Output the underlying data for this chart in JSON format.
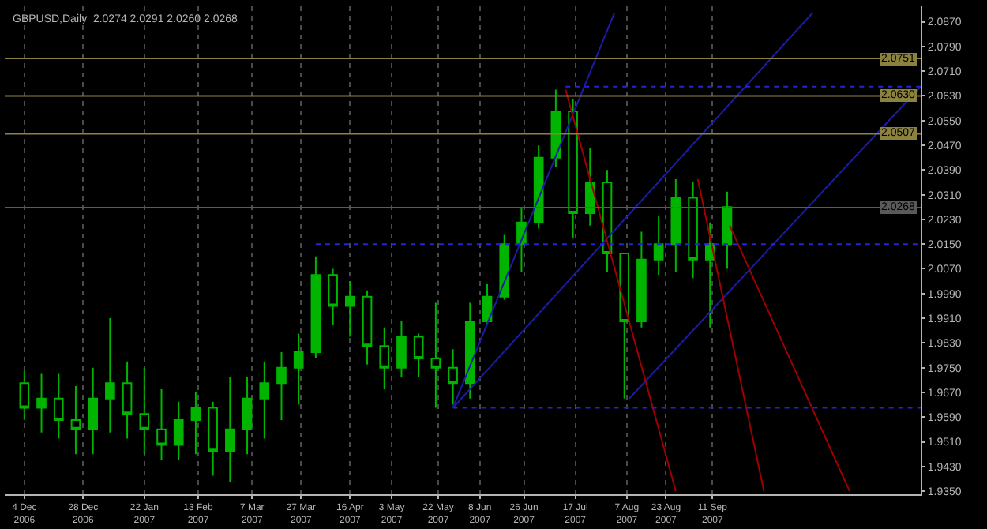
{
  "chart_data": {
    "type": "candlestick",
    "title": "GBPUSD,Daily  2.0274 2.0291 2.0260 2.0268",
    "color": "#00b400",
    "x": [
      "2006-12-04",
      "2006-12-11",
      "2006-12-18",
      "2006-12-25",
      "2007-01-01",
      "2007-01-08",
      "2007-01-15",
      "2007-01-22",
      "2007-01-29",
      "2007-02-05",
      "2007-02-12",
      "2007-02-19",
      "2007-02-26",
      "2007-03-05",
      "2007-03-12",
      "2007-03-19",
      "2007-03-26",
      "2007-04-02",
      "2007-04-09",
      "2007-04-16",
      "2007-04-23",
      "2007-04-30",
      "2007-05-07",
      "2007-05-14",
      "2007-05-21",
      "2007-05-28",
      "2007-06-04",
      "2007-06-11",
      "2007-06-18",
      "2007-06-25",
      "2007-07-02",
      "2007-07-09",
      "2007-07-16",
      "2007-07-23",
      "2007-07-30",
      "2007-08-06",
      "2007-08-13",
      "2007-08-20",
      "2007-08-27",
      "2007-09-03",
      "2007-09-10",
      "2007-09-17"
    ],
    "ohlc": [
      [
        1.97,
        1.974,
        1.958,
        1.962
      ],
      [
        1.962,
        1.973,
        1.954,
        1.965
      ],
      [
        1.965,
        1.973,
        1.952,
        1.958
      ],
      [
        1.958,
        1.969,
        1.947,
        1.955
      ],
      [
        1.955,
        1.975,
        1.947,
        1.965
      ],
      [
        1.965,
        1.991,
        1.954,
        1.97
      ],
      [
        1.97,
        1.977,
        1.952,
        1.96
      ],
      [
        1.96,
        1.975,
        1.947,
        1.955
      ],
      [
        1.955,
        1.968,
        1.945,
        1.95
      ],
      [
        1.95,
        1.964,
        1.945,
        1.958
      ],
      [
        1.958,
        1.967,
        1.947,
        1.962
      ],
      [
        1.962,
        1.964,
        1.94,
        1.948
      ],
      [
        1.948,
        1.972,
        1.938,
        1.955
      ],
      [
        1.955,
        1.972,
        1.947,
        1.965
      ],
      [
        1.965,
        1.977,
        1.952,
        1.97
      ],
      [
        1.97,
        1.98,
        1.958,
        1.975
      ],
      [
        1.975,
        1.986,
        1.963,
        1.98
      ],
      [
        1.98,
        2.011,
        1.978,
        2.005
      ],
      [
        2.005,
        2.007,
        1.989,
        1.995
      ],
      [
        1.995,
        2.003,
        1.985,
        1.998
      ],
      [
        1.998,
        2.0,
        1.976,
        1.982
      ],
      [
        1.982,
        1.988,
        1.968,
        1.975
      ],
      [
        1.975,
        1.99,
        1.972,
        1.985
      ],
      [
        1.985,
        1.986,
        1.972,
        1.978
      ],
      [
        1.978,
        1.996,
        1.962,
        1.975
      ],
      [
        1.975,
        1.981,
        1.963,
        1.97
      ],
      [
        1.97,
        1.996,
        1.965,
        1.99
      ],
      [
        1.99,
        2.002,
        1.989,
        1.998
      ],
      [
        1.998,
        2.018,
        1.997,
        2.015
      ],
      [
        2.015,
        2.027,
        2.006,
        2.022
      ],
      [
        2.022,
        2.047,
        2.02,
        2.043
      ],
      [
        2.043,
        2.065,
        2.04,
        2.058
      ],
      [
        2.058,
        2.062,
        2.017,
        2.025
      ],
      [
        2.025,
        2.046,
        2.021,
        2.035
      ],
      [
        2.035,
        2.039,
        2.006,
        2.012
      ],
      [
        2.012,
        2.012,
        1.965,
        1.99
      ],
      [
        1.99,
        2.019,
        1.988,
        2.01
      ],
      [
        2.01,
        2.024,
        2.005,
        2.015
      ],
      [
        2.015,
        2.036,
        2.006,
        2.03
      ],
      [
        2.03,
        2.035,
        2.004,
        2.01
      ],
      [
        2.01,
        2.022,
        1.988,
        2.015
      ],
      [
        2.015,
        2.032,
        2.007,
        2.027
      ]
    ],
    "series": [
      {
        "type": "line",
        "color": "#1c1ca8",
        "x": [
          "2007-05-28",
          "2007-08-02"
        ],
        "values": [
          1.962,
          2.09
        ]
      },
      {
        "type": "line",
        "color": "#1c1ca8",
        "x": [
          "2007-05-28",
          "2007-10-22"
        ],
        "values": [
          1.962,
          2.09
        ]
      },
      {
        "type": "line",
        "color": "#1c1ca8",
        "x": [
          "2007-08-08",
          "2007-12-05"
        ],
        "values": [
          1.965,
          2.066
        ]
      },
      {
        "type": "line",
        "color": "#a00000",
        "x": [
          "2007-07-13",
          "2007-08-27"
        ],
        "values": [
          2.065,
          1.935
        ]
      },
      {
        "type": "line",
        "color": "#a00000",
        "x": [
          "2007-09-05",
          "2007-10-02"
        ],
        "values": [
          2.036,
          1.935
        ]
      },
      {
        "type": "line",
        "color": "#a00000",
        "x": [
          "2007-09-18",
          "2007-11-06"
        ],
        "values": [
          2.021,
          1.935
        ]
      },
      {
        "type": "line",
        "color": "#2424d0",
        "line_style": "dotted",
        "x": [
          "2007-07-13",
          "2007-12-05"
        ],
        "values": [
          2.066,
          2.066
        ]
      },
      {
        "type": "line",
        "color": "#2424d0",
        "line_style": "dotted",
        "x": [
          "2007-04-02",
          "2007-12-05"
        ],
        "values": [
          2.015,
          2.015
        ]
      },
      {
        "type": "line",
        "color": "#2424d0",
        "line_style": "dotted",
        "x": [
          "2007-05-28",
          "2007-12-05"
        ],
        "values": [
          1.962,
          1.962
        ]
      }
    ],
    "ref_lines": [
      {
        "axis": "y",
        "value": 2.0751,
        "label": "2.0751",
        "color": "#8c8240"
      },
      {
        "axis": "y",
        "value": 2.063,
        "label": "2.0630",
        "color": "#8c8240"
      },
      {
        "axis": "y",
        "value": 2.0507,
        "label": "2.0507",
        "color": "#8c8240"
      },
      {
        "axis": "y",
        "value": 2.0268,
        "label": "2.0268",
        "color": "#5a5a5a"
      }
    ],
    "xlim": [
      "2006-11-26",
      "2007-12-05"
    ],
    "xticks": [
      {
        "value": "2006-12-04",
        "label": "4 Dec 2006"
      },
      {
        "value": "2006-12-28",
        "label": "28 Dec 2006"
      },
      {
        "value": "2007-01-22",
        "label": "22 Jan 2007"
      },
      {
        "value": "2007-02-13",
        "label": "13 Feb 2007"
      },
      {
        "value": "2007-03-07",
        "label": "7 Mar 2007"
      },
      {
        "value": "2007-03-27",
        "label": "27 Mar 2007"
      },
      {
        "value": "2007-04-16",
        "label": "16 Apr 2007"
      },
      {
        "value": "2007-05-03",
        "label": "3 May 2007"
      },
      {
        "value": "2007-05-22",
        "label": "22 May 2007"
      },
      {
        "value": "2007-06-08",
        "label": "8 Jun 2007"
      },
      {
        "value": "2007-06-26",
        "label": "26 Jun 2007"
      },
      {
        "value": "2007-07-17",
        "label": "17 Jul 2007"
      },
      {
        "value": "2007-08-07",
        "label": "7 Aug 2007"
      },
      {
        "value": "2007-08-23",
        "label": "23 Aug 2007"
      },
      {
        "value": "2007-09-11",
        "label": "11 Sep 2007"
      }
    ],
    "ylim": [
      1.934,
      2.092
    ],
    "yticks": [
      {
        "value": 1.935,
        "label": "1.9350"
      },
      {
        "value": 1.943,
        "label": "1.9430"
      },
      {
        "value": 1.951,
        "label": "1.9510"
      },
      {
        "value": 1.959,
        "label": "1.9590"
      },
      {
        "value": 1.967,
        "label": "1.9670"
      },
      {
        "value": 1.975,
        "label": "1.9750"
      },
      {
        "value": 1.983,
        "label": "1.9830"
      },
      {
        "value": 1.991,
        "label": "1.9910"
      },
      {
        "value": 1.999,
        "label": "1.9990"
      },
      {
        "value": 2.007,
        "label": "2.0070"
      },
      {
        "value": 2.015,
        "label": "2.0150"
      },
      {
        "value": 2.023,
        "label": "2.0230"
      },
      {
        "value": 2.031,
        "label": "2.0310"
      },
      {
        "value": 2.039,
        "label": "2.0390"
      },
      {
        "value": 2.047,
        "label": "2.0470"
      },
      {
        "value": 2.055,
        "label": "2.0550"
      },
      {
        "value": 2.063,
        "label": "2.0630"
      },
      {
        "value": 2.071,
        "label": "2.0710"
      },
      {
        "value": 2.079,
        "label": "2.0790"
      },
      {
        "value": 2.087,
        "label": "2.0870"
      }
    ],
    "grid": "x"
  }
}
